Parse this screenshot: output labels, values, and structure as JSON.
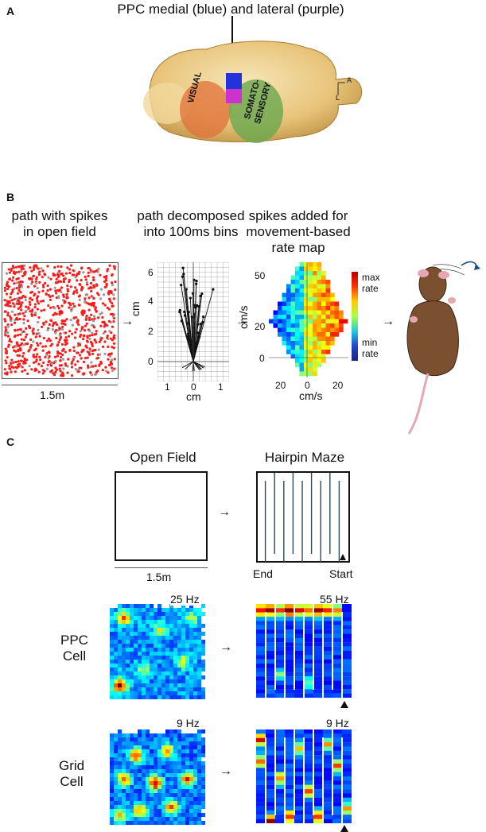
{
  "panelA": {
    "label": "A",
    "title": "PPC medial (blue) and lateral (purple)",
    "region_visual": "VISUAL",
    "region_somato_1": "SOMATO-",
    "region_somato_2": "SENSORY",
    "axis_a": "A",
    "axis_l": "L"
  },
  "panelB": {
    "label": "B",
    "col1_line1": "path with spikes",
    "col1_line2": "in open field",
    "col2_line1": "path decomposed",
    "col2_line2": "into 100ms bins",
    "col3_line1": "spikes added for",
    "col3_line2": "movement-based",
    "col3_line3": "rate map",
    "scale": "1.5m",
    "vec_ylabel": "cm",
    "vec_xlabel": "cm",
    "vec_yticks": [
      "6",
      "4",
      "2",
      "0"
    ],
    "vec_xticks": [
      "1",
      "0",
      "1"
    ],
    "rate_ylabel": "cm/s",
    "rate_xlabel": "cm/s",
    "rate_yticks": [
      "50",
      "20",
      "0"
    ],
    "rate_xticks": [
      "20",
      "0",
      "20"
    ],
    "cbar_max_1": "max",
    "cbar_max_2": "rate",
    "cbar_min_1": "min",
    "cbar_min_2": "rate"
  },
  "panelC": {
    "label": "C",
    "open_field_title": "Open Field",
    "hairpin_title": "Hairpin Maze",
    "scale": "1.5m",
    "end_label": "End",
    "start_label": "Start",
    "ppc_label_1": "PPC",
    "ppc_label_2": "Cell",
    "ppc_of_rate": "25 Hz",
    "ppc_hp_rate": "55 Hz",
    "grid_label_1": "Grid",
    "grid_label_2": "Cell",
    "grid_of_rate": "9 Hz",
    "grid_hp_rate": "9 Hz"
  },
  "colors": {
    "ppc_medial": "#2233dd",
    "ppc_lateral": "#cc33cc",
    "visual_region": "#e0703a",
    "somato_region": "#6aa84f",
    "spikes": "#ff1a1a",
    "mouse_body": "#7a5030"
  }
}
